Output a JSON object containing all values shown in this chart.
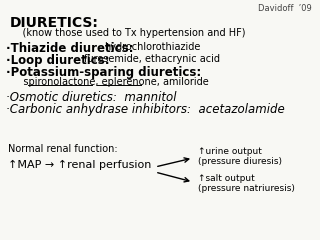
{
  "bg_color": "#f8f8f4",
  "watermark": "Davidoff  ’09",
  "title_bold": "DIURETICS:",
  "subtitle": "    (know those used to Tx hypertension and HF)",
  "line1_bold": "·Thiazide diuretics: ",
  "line1_normal": "hydrochlorothiazide",
  "line2_bold": "·Loop diuretics: ",
  "line2_normal": "furosemide, ethacrynic acid",
  "line3_bold": "·Potassium-sparing diuretics:",
  "line4_indent": "   spironolactone, eplerenone, amiloride",
  "line5_italic": "·Osmotic diuretics:  mannitol",
  "line6_italic": "·Carbonic anhydrase inhibitors:  acetazolamide",
  "bottom_label": "Normal renal function:",
  "bottom_map": "↑MAP → ↑renal perfusion",
  "right_top": "↑urine output\n(pressure diuresis)",
  "right_bot": "↑salt output\n(pressure natriuresis)"
}
